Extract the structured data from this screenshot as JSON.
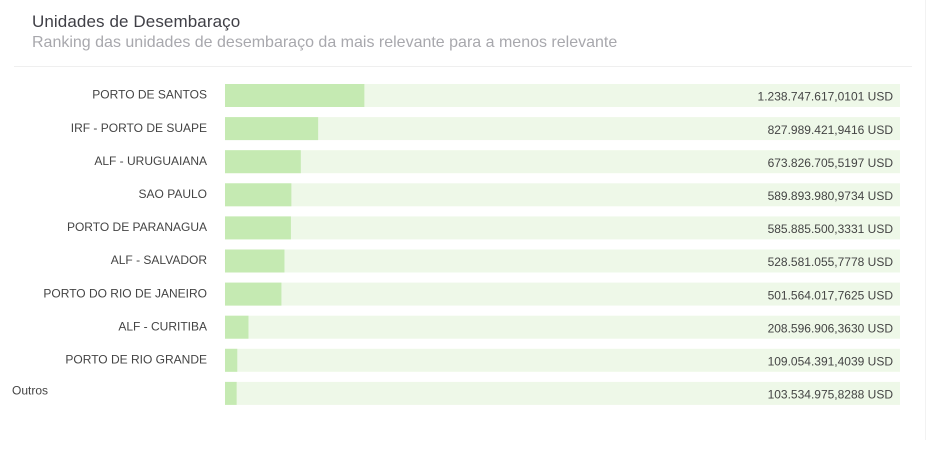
{
  "header": {
    "title": "Unidades de Desembaraço",
    "subtitle": "Ranking das unidades de desembaraço da mais relevante para a menos relevante"
  },
  "colors": {
    "bar": "#c5eab2",
    "track": "#eef8e8",
    "text": "#444444",
    "title": "#3f3f46",
    "subtitle": "#a8a8ad"
  },
  "chart_data": {
    "type": "bar",
    "orientation": "horizontal",
    "title": "Unidades de Desembaraço",
    "subtitle": "Ranking das unidades de desembaraço da mais relevante para a menos relevante",
    "unit": "USD",
    "xlabel": "",
    "ylabel": "",
    "grid": false,
    "legend": "none",
    "categories": [
      "PORTO DE SANTOS",
      "IRF - PORTO DE SUAPE",
      "ALF - URUGUAIANA",
      "SAO PAULO",
      "PORTO DE PARANAGUA",
      "ALF - SALVADOR",
      "PORTO DO RIO DE JANEIRO",
      "ALF - CURITIBA",
      "PORTO DE RIO GRANDE",
      "Outros"
    ],
    "values": [
      1238747617.0101,
      827989421.9416,
      673826705.5197,
      589893980.9734,
      585885500.3331,
      528581055.7778,
      501564017.7625,
      208596906.363,
      109054391.4039,
      103534975.8288
    ],
    "value_labels": [
      "1.238.747.617,0101 USD",
      "827.989.421,9416 USD",
      "673.826.705,5197 USD",
      "589.893.980,9734 USD",
      "585.885.500,3331 USD",
      "528.581.055,7778 USD",
      "501.564.017,7625 USD",
      "208.596.906,3630 USD",
      "109.054.391,4039 USD",
      "103.534.975,8288 USD"
    ],
    "xlim": [
      0,
      6000000000
    ]
  }
}
